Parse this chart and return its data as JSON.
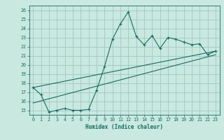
{
  "xlabel": "Humidex (Indice chaleur)",
  "bg_color": "#c8e8e0",
  "grid_color": "#a0c8c0",
  "line_color": "#1a6b60",
  "ylim": [
    14.5,
    26.5
  ],
  "xlim": [
    -0.5,
    23.5
  ],
  "yticks": [
    15,
    16,
    17,
    18,
    19,
    20,
    21,
    22,
    23,
    24,
    25,
    26
  ],
  "xticks": [
    0,
    1,
    2,
    3,
    4,
    5,
    6,
    7,
    8,
    9,
    10,
    11,
    12,
    13,
    14,
    15,
    16,
    17,
    18,
    19,
    20,
    21,
    22,
    23
  ],
  "series1_x": [
    0,
    1,
    2,
    3,
    4,
    5,
    6,
    7,
    8,
    9,
    10,
    11,
    12,
    13,
    14,
    15,
    16,
    17,
    18,
    19,
    20,
    21,
    22,
    23
  ],
  "series1_y": [
    17.5,
    16.7,
    14.8,
    15.0,
    15.2,
    15.0,
    15.0,
    15.1,
    17.2,
    19.8,
    22.8,
    24.5,
    25.8,
    23.1,
    22.2,
    23.2,
    21.8,
    23.0,
    22.8,
    22.5,
    22.2,
    22.3,
    21.1,
    21.5
  ],
  "series2_x": [
    0,
    23
  ],
  "series2_y": [
    17.5,
    21.5
  ],
  "series3_x": [
    0,
    23
  ],
  "series3_y": [
    15.8,
    21.1
  ]
}
